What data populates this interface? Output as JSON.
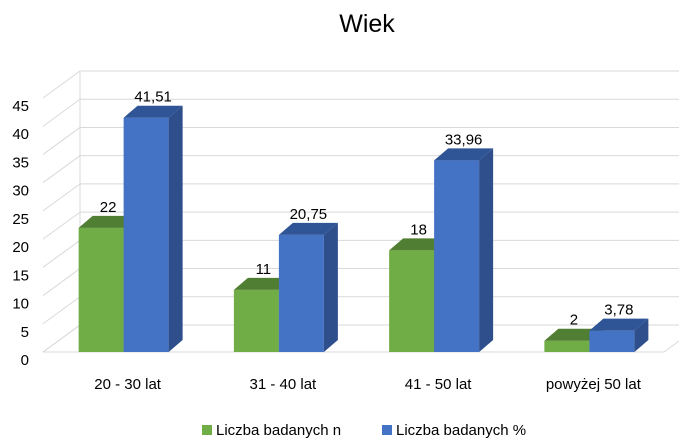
{
  "chart_data": {
    "type": "bar",
    "title": "Wiek",
    "categories": [
      "20 - 30 lat",
      "31 - 40 lat",
      "41 - 50 lat",
      "powyżej 50 lat"
    ],
    "series": [
      {
        "name": "Liczba badanych n",
        "values": [
          22,
          11,
          18,
          2
        ],
        "labels": [
          "22",
          "11",
          "18",
          "2"
        ],
        "color": "#70AD47",
        "top_color": "#507E32",
        "side_color": "#5A8A39"
      },
      {
        "name": "Liczba badanych %",
        "values": [
          41.51,
          20.75,
          33.96,
          3.78
        ],
        "labels": [
          "41,51",
          "20,75",
          "33,96",
          "3,78"
        ],
        "color": "#4472C4",
        "top_color": "#2F5597",
        "side_color": "#2E4F8C"
      }
    ],
    "yticks": [
      "0",
      "5",
      "10",
      "15",
      "20",
      "25",
      "30",
      "35",
      "40",
      "45"
    ],
    "ylim": [
      0,
      45
    ],
    "ystep": 5,
    "xlabel": "",
    "ylabel": "",
    "grid": true,
    "legend_position": "bottom"
  }
}
